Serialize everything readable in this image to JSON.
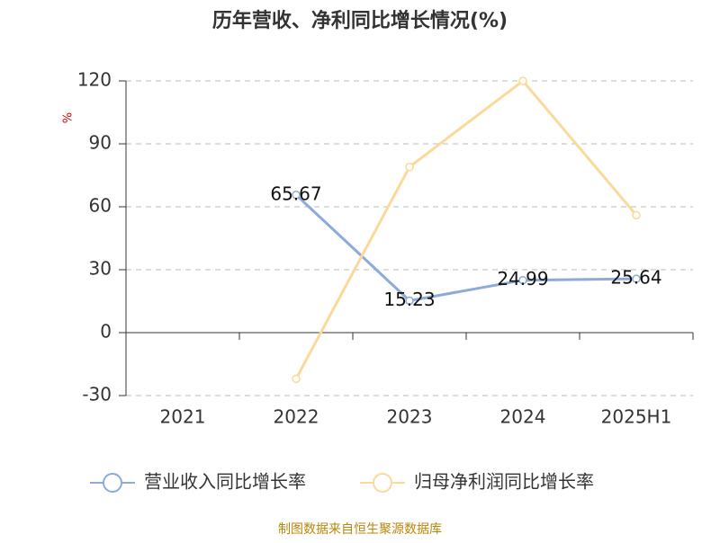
{
  "chart_data": {
    "type": "line",
    "title": "历年营收、净利同比增长情况(%)",
    "y_label": "%",
    "categories": [
      "2021",
      "2022",
      "2023",
      "2024",
      "2025H1"
    ],
    "series": [
      {
        "name": "营业收入同比增长率",
        "color": "#8eaadb",
        "values": [
          null,
          65.67,
          15.23,
          24.99,
          25.64
        ],
        "show_labels": true
      },
      {
        "name": "归母净利润同比增长率",
        "color": "#fbd99a",
        "values": [
          null,
          -22,
          79,
          120,
          56
        ],
        "show_labels": false
      }
    ],
    "ylim": [
      -30,
      120
    ],
    "yticks": [
      -30,
      0,
      30,
      60,
      90,
      120
    ],
    "grid": true,
    "source": "制图数据来自恒生聚源数据库"
  }
}
